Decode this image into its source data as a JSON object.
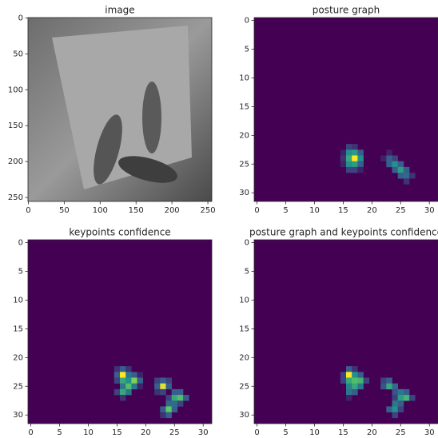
{
  "chart_data": [
    {
      "type": "image",
      "title": "image",
      "xlim": [
        -0.5,
        255.5
      ],
      "ylim": [
        255.5,
        -0.5
      ],
      "xticks": [
        0,
        50,
        100,
        150,
        200,
        250
      ],
      "yticks": [
        0,
        50,
        100,
        150,
        200,
        250
      ]
    },
    {
      "type": "heatmap",
      "title": "posture graph",
      "xlim": [
        -0.5,
        31.5
      ],
      "ylim": [
        31.5,
        -0.5
      ],
      "xticks": [
        0,
        5,
        10,
        15,
        20,
        25,
        30
      ],
      "yticks": [
        0,
        5,
        10,
        15,
        20,
        25,
        30
      ],
      "cells": [
        [
          16,
          22,
          0.2
        ],
        [
          17,
          22,
          0.15
        ],
        [
          15,
          23,
          0.1
        ],
        [
          16,
          23,
          0.5
        ],
        [
          17,
          23,
          0.55
        ],
        [
          18,
          23,
          0.3
        ],
        [
          15,
          24,
          0.15
        ],
        [
          16,
          24,
          0.6
        ],
        [
          17,
          24,
          1.0
        ],
        [
          18,
          24,
          0.5
        ],
        [
          15,
          25,
          0.1
        ],
        [
          16,
          25,
          0.5
        ],
        [
          17,
          25,
          0.55
        ],
        [
          18,
          25,
          0.3
        ],
        [
          16,
          26,
          0.2
        ],
        [
          17,
          26,
          0.2
        ],
        [
          18,
          26,
          0.1
        ],
        [
          22,
          24,
          0.1
        ],
        [
          23,
          23,
          0.1
        ],
        [
          23,
          24,
          0.3
        ],
        [
          24,
          24,
          0.2
        ],
        [
          23,
          25,
          0.3
        ],
        [
          24,
          25,
          0.5
        ],
        [
          25,
          25,
          0.3
        ],
        [
          24,
          26,
          0.3
        ],
        [
          25,
          26,
          0.55
        ],
        [
          26,
          26,
          0.3
        ],
        [
          25,
          27,
          0.3
        ],
        [
          26,
          27,
          0.35
        ],
        [
          27,
          27,
          0.15
        ],
        [
          26,
          28,
          0.15
        ]
      ]
    },
    {
      "type": "heatmap",
      "title": "keypoints confidence",
      "xlim": [
        -0.5,
        31.5
      ],
      "ylim": [
        31.5,
        -0.5
      ],
      "xticks": [
        0,
        5,
        10,
        15,
        20,
        25,
        30
      ],
      "yticks": [
        0,
        5,
        10,
        15,
        20,
        25,
        30
      ],
      "cells": [
        [
          15,
          22,
          0.15
        ],
        [
          16,
          22,
          0.3
        ],
        [
          17,
          22,
          0.15
        ],
        [
          15,
          23,
          0.3
        ],
        [
          16,
          23,
          1.0
        ],
        [
          17,
          23,
          0.4
        ],
        [
          18,
          23,
          0.3
        ],
        [
          19,
          23,
          0.1
        ],
        [
          15,
          24,
          0.2
        ],
        [
          16,
          24,
          0.6
        ],
        [
          17,
          24,
          0.5
        ],
        [
          18,
          24,
          0.8
        ],
        [
          19,
          24,
          0.3
        ],
        [
          16,
          25,
          0.4
        ],
        [
          17,
          25,
          0.7
        ],
        [
          18,
          25,
          0.4
        ],
        [
          19,
          25,
          0.1
        ],
        [
          15,
          26,
          0.2
        ],
        [
          16,
          26,
          0.6
        ],
        [
          17,
          26,
          0.4
        ],
        [
          16,
          27,
          0.15
        ],
        [
          22,
          24,
          0.2
        ],
        [
          23,
          24,
          0.3
        ],
        [
          24,
          24,
          0.2
        ],
        [
          22,
          25,
          0.3
        ],
        [
          23,
          25,
          0.95
        ],
        [
          24,
          25,
          0.3
        ],
        [
          22,
          26,
          0.15
        ],
        [
          23,
          26,
          0.2
        ],
        [
          25,
          26,
          0.3
        ],
        [
          26,
          26,
          0.3
        ],
        [
          24,
          27,
          0.2
        ],
        [
          25,
          27,
          0.6
        ],
        [
          26,
          27,
          0.7
        ],
        [
          27,
          27,
          0.3
        ],
        [
          24,
          28,
          0.35
        ],
        [
          25,
          28,
          0.35
        ],
        [
          26,
          28,
          0.2
        ],
        [
          23,
          29,
          0.3
        ],
        [
          24,
          29,
          0.75
        ],
        [
          25,
          29,
          0.3
        ],
        [
          23,
          30,
          0.15
        ],
        [
          24,
          30,
          0.3
        ]
      ]
    },
    {
      "type": "heatmap",
      "title": "posture graph and keypoints confidence",
      "xlim": [
        -0.5,
        31.5
      ],
      "ylim": [
        31.5,
        -0.5
      ],
      "xticks": [
        0,
        5,
        10,
        15,
        20,
        25,
        30
      ],
      "yticks": [
        0,
        5,
        10,
        15,
        20,
        25,
        30
      ],
      "cells": [
        [
          16,
          22,
          0.3
        ],
        [
          17,
          22,
          0.15
        ],
        [
          15,
          23,
          0.2
        ],
        [
          16,
          23,
          1.0
        ],
        [
          17,
          23,
          0.5
        ],
        [
          18,
          23,
          0.3
        ],
        [
          15,
          24,
          0.2
        ],
        [
          16,
          24,
          0.6
        ],
        [
          17,
          24,
          0.7
        ],
        [
          18,
          24,
          0.65
        ],
        [
          19,
          24,
          0.2
        ],
        [
          16,
          25,
          0.45
        ],
        [
          17,
          25,
          0.6
        ],
        [
          18,
          25,
          0.4
        ],
        [
          16,
          26,
          0.4
        ],
        [
          17,
          26,
          0.3
        ],
        [
          16,
          27,
          0.1
        ],
        [
          22,
          24,
          0.2
        ],
        [
          23,
          24,
          0.3
        ],
        [
          22,
          25,
          0.25
        ],
        [
          23,
          25,
          0.6
        ],
        [
          24,
          25,
          0.35
        ],
        [
          24,
          26,
          0.25
        ],
        [
          25,
          26,
          0.4
        ],
        [
          26,
          26,
          0.3
        ],
        [
          24,
          27,
          0.2
        ],
        [
          25,
          27,
          0.55
        ],
        [
          26,
          27,
          0.65
        ],
        [
          27,
          27,
          0.2
        ],
        [
          24,
          28,
          0.4
        ],
        [
          25,
          28,
          0.3
        ],
        [
          23,
          29,
          0.3
        ],
        [
          24,
          29,
          0.5
        ],
        [
          25,
          29,
          0.2
        ],
        [
          24,
          30,
          0.2
        ]
      ]
    }
  ]
}
